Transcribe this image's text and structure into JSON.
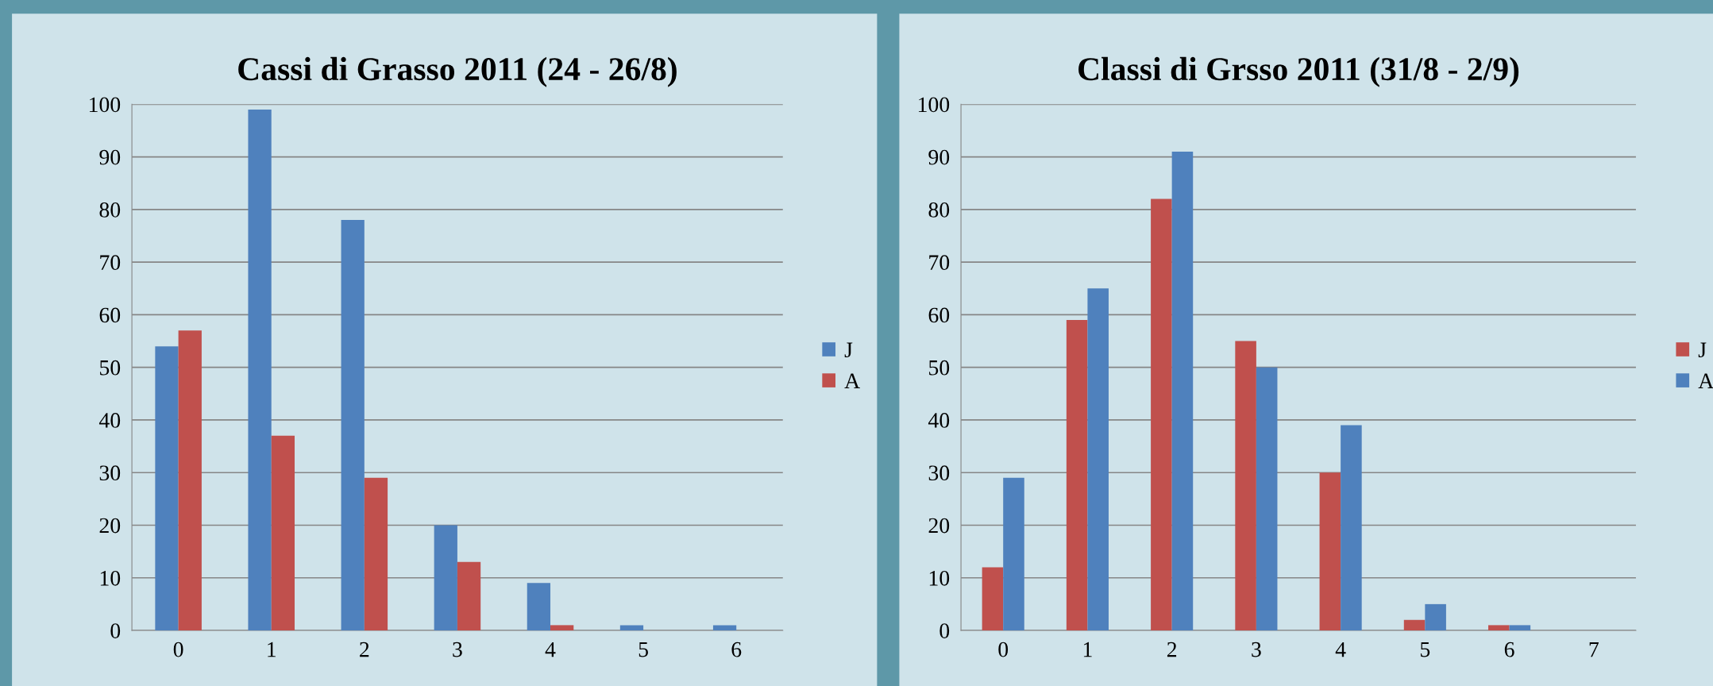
{
  "chart_data": [
    {
      "type": "bar",
      "title": "Cassi di Grasso 2011 (24 - 26/8)",
      "categories": [
        "0",
        "1",
        "2",
        "3",
        "4",
        "5",
        "6"
      ],
      "series": [
        {
          "name": "J",
          "color": "#4f81bd",
          "values": [
            54,
            99,
            78,
            20,
            9,
            1,
            1
          ]
        },
        {
          "name": "A",
          "color": "#c0504d",
          "values": [
            57,
            37,
            29,
            13,
            1,
            0,
            0
          ]
        }
      ],
      "ylim": [
        0,
        100
      ],
      "yticks": [
        0,
        10,
        20,
        30,
        40,
        50,
        60,
        70,
        80,
        90,
        100
      ],
      "grid": "y",
      "legend": "right"
    },
    {
      "type": "bar",
      "title": "Classi di Grsso 2011 (31/8 - 2/9)",
      "categories": [
        "0",
        "1",
        "2",
        "3",
        "4",
        "5",
        "6",
        "7"
      ],
      "series": [
        {
          "name": "J",
          "color": "#c0504d",
          "values": [
            12,
            59,
            82,
            55,
            30,
            2,
            1,
            null
          ]
        },
        {
          "name": "A",
          "color": "#4f81bd",
          "values": [
            29,
            65,
            91,
            50,
            39,
            5,
            1,
            null
          ]
        }
      ],
      "ylim": [
        0,
        100
      ],
      "yticks": [
        0,
        10,
        20,
        30,
        40,
        50,
        60,
        70,
        80,
        90,
        100
      ],
      "grid": "y",
      "legend": "right"
    }
  ]
}
